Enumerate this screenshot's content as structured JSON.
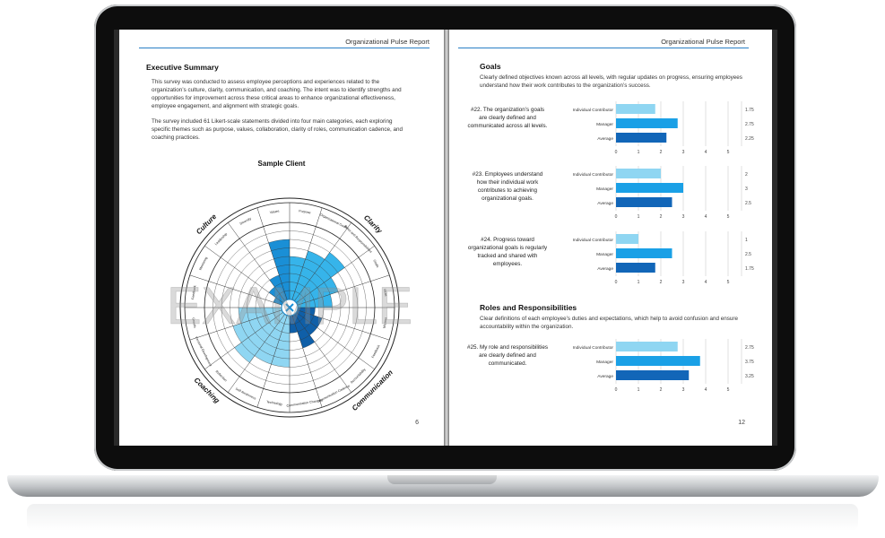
{
  "left_page": {
    "header": "Organizational Pulse Report",
    "title": "Executive Summary",
    "para1": "This survey was conducted to assess employee perceptions and experiences related to the organization’s culture, clarity, communication, and coaching. The intent was to identify strengths and opportunities for improvement across these critical areas to enhance organizational effectiveness, employee engagement, and alignment with strategic goals.",
    "para2": "The survey included 61 Likert-scale statements divided into four main categories, each exploring specific themes such as purpose, values, collaboration, clarity of roles, communication cadence, and coaching practices.",
    "chart_title": "Sample Client",
    "watermark": "EXAMPLE",
    "page_number": "6"
  },
  "right_page": {
    "header": "Organizational Pulse Report",
    "goals_title": "Goals",
    "goals_desc": "Clearly defined objectives known across all levels, with regular updates on progress, ensuring employees understand how their work contributes to the organization’s success.",
    "roles_title": "Roles and Responsibilities",
    "roles_desc": "Clear definitions of each employee’s duties and expectations, which help to avoid confusion and ensure accountability within the organization.",
    "page_number": "12",
    "questions": [
      "#22. The organization’s goals are clearly defined and communicated across all levels.",
      "#23. Employees understand how their individual work contributes to achieving organizational goals.",
      "#24. Progress toward organizational goals is regularly tracked and shared with employees.",
      "#25. My role and responsibilities are clearly defined and communicated."
    ]
  },
  "colors": {
    "individual": "#8fd6f2",
    "manager": "#1aa0e6",
    "average": "#1266b8",
    "accent": "#2a7fc6"
  },
  "chart_data": [
    {
      "type": "bar",
      "categories": [
        "Individual Contributor",
        "Manager",
        "Average"
      ],
      "values": [
        1.75,
        2.75,
        2.25
      ],
      "value_labels": [
        "1.75",
        "2.75",
        "2.25"
      ],
      "ticks": [
        "0",
        "1",
        "2",
        "3",
        "4",
        "5"
      ],
      "xlim": [
        0,
        5
      ]
    },
    {
      "type": "bar",
      "categories": [
        "Individual Contributor",
        "Manager",
        "Average"
      ],
      "values": [
        2,
        3,
        2.5
      ],
      "value_labels": [
        "2",
        "3",
        "2.5"
      ],
      "ticks": [
        "0",
        "1",
        "2",
        "3",
        "4",
        "5"
      ],
      "xlim": [
        0,
        5
      ]
    },
    {
      "type": "bar",
      "categories": [
        "Individual Contributor",
        "Manager",
        "Average"
      ],
      "values": [
        1,
        2.5,
        1.75
      ],
      "value_labels": [
        "1",
        "2.5",
        "1.75"
      ],
      "ticks": [
        "0",
        "1",
        "2",
        "3",
        "4",
        "5"
      ],
      "xlim": [
        0,
        5
      ]
    },
    {
      "type": "bar",
      "categories": [
        "Individual Contributor",
        "Manager",
        "Average"
      ],
      "values": [
        2.75,
        3.75,
        3.25
      ],
      "value_labels": [
        "2.75",
        "3.75",
        "3.25"
      ],
      "ticks": [
        "0",
        "1",
        "2",
        "3",
        "4",
        "5"
      ],
      "xlim": [
        0,
        5
      ]
    },
    {
      "type": "radial",
      "categories_groups": [
        "Culture",
        "Clarity",
        "Communication",
        "Coaching"
      ],
      "segments": [
        "Purpose",
        "Organizational Goals",
        "Roles and Responsibilities",
        "Goals",
        "Ideas",
        "Mission",
        "Feedback",
        "Accountability",
        "Communication Cadence",
        "Communication Channels",
        "Technology",
        "Self-Awareness",
        "Reflection",
        "Personal Development",
        "Growth",
        "Feedback",
        "Mentoring",
        "Leadership",
        "Diversity",
        "Values"
      ],
      "values": [
        6,
        7,
        8,
        6,
        5,
        3,
        4,
        4,
        5,
        3,
        7,
        7,
        8,
        7,
        6,
        1,
        2,
        3,
        4,
        8
      ],
      "max": 10
    }
  ]
}
